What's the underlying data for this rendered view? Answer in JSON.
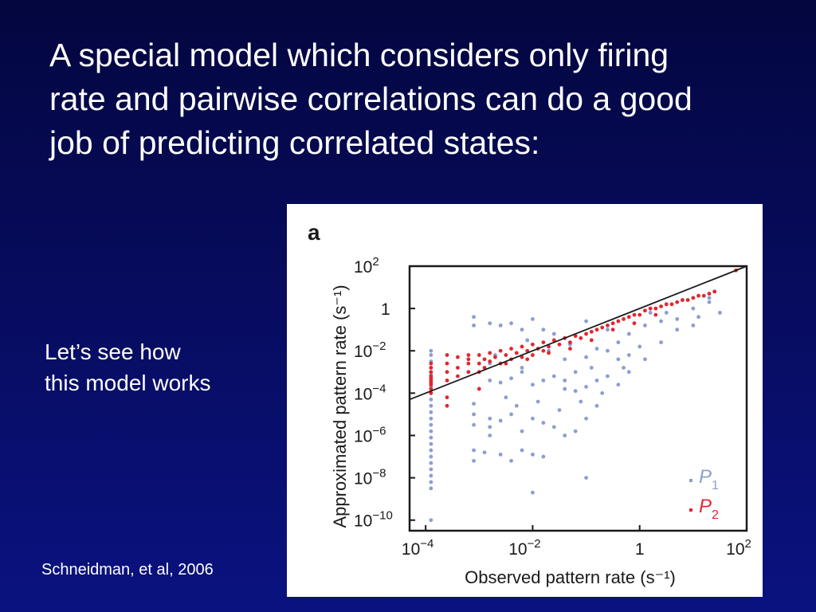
{
  "slide": {
    "title_lines": [
      "A special model which considers only firing",
      "rate and pairwise correlations can do a good",
      "job of predicting correlated states:"
    ],
    "side_lines": [
      "Let’s see how",
      "this model works"
    ],
    "citation": "Schneidman, et al, 2006"
  },
  "colors": {
    "p1": "#8b9ed1",
    "p2": "#e3262e",
    "line": "#1a1a1a"
  },
  "chart_data": {
    "type": "scatter",
    "panel_label": "a",
    "xlabel": "Observed pattern rate (s⁻¹)",
    "ylabel": "Approximated pattern rate (s⁻¹)",
    "scale": "log10",
    "xlim_log10": [
      -4.3,
      2.0
    ],
    "ylim_log10": [
      -10.5,
      2.0
    ],
    "x_ticks": [
      {
        "log": -4,
        "base": "10",
        "exp": "−4"
      },
      {
        "log": -2,
        "base": "10",
        "exp": "−2"
      },
      {
        "log": 0,
        "base": "1",
        "exp": ""
      },
      {
        "log": 2,
        "base": "10",
        "exp": "2"
      }
    ],
    "y_ticks": [
      {
        "log": 2,
        "base": "10",
        "exp": "2"
      },
      {
        "log": 0,
        "base": "1",
        "exp": ""
      },
      {
        "log": -2,
        "base": "10",
        "exp": "−2"
      },
      {
        "log": -4,
        "base": "10",
        "exp": "−4"
      },
      {
        "log": -6,
        "base": "10",
        "exp": "−6"
      },
      {
        "log": -8,
        "base": "10",
        "exp": "−8"
      },
      {
        "log": -10,
        "base": "10",
        "exp": "−10"
      }
    ],
    "reference_line": {
      "label": "y = x",
      "from_log10": [
        -4.3,
        -4.3
      ],
      "to_log10": [
        2.0,
        2.0
      ]
    },
    "legend": {
      "placement": "bottom-right",
      "entries": [
        {
          "name": "P",
          "sub": "1",
          "series": "p1"
        },
        {
          "name": "P",
          "sub": "2",
          "series": "p2"
        }
      ]
    },
    "series": [
      {
        "name": "P1",
        "points_log10": [
          [
            -3.9,
            -2.0
          ],
          [
            -3.9,
            -2.2
          ],
          [
            -3.9,
            -2.5
          ],
          [
            -3.9,
            -2.8
          ],
          [
            -3.9,
            -3.1
          ],
          [
            -3.9,
            -3.4
          ],
          [
            -3.9,
            -3.7
          ],
          [
            -3.9,
            -4.0
          ],
          [
            -3.9,
            -4.3
          ],
          [
            -3.9,
            -4.6
          ],
          [
            -3.9,
            -4.9
          ],
          [
            -3.9,
            -5.2
          ],
          [
            -3.9,
            -5.5
          ],
          [
            -3.9,
            -5.8
          ],
          [
            -3.9,
            -6.1
          ],
          [
            -3.9,
            -6.4
          ],
          [
            -3.9,
            -6.7
          ],
          [
            -3.9,
            -7.0
          ],
          [
            -3.9,
            -7.3
          ],
          [
            -3.9,
            -7.6
          ],
          [
            -3.9,
            -7.9
          ],
          [
            -3.9,
            -8.2
          ],
          [
            -3.9,
            -8.5
          ],
          [
            -3.9,
            -10.0
          ],
          [
            -3.1,
            -0.4
          ],
          [
            -3.1,
            -0.8
          ],
          [
            -3.1,
            -4.5
          ],
          [
            -3.1,
            -5.0
          ],
          [
            -3.1,
            -5.5
          ],
          [
            -3.1,
            -6.7
          ],
          [
            -3.1,
            -7.2
          ],
          [
            -2.8,
            -0.7
          ],
          [
            -2.8,
            -2.6
          ],
          [
            -2.8,
            -3.4
          ],
          [
            -2.8,
            -5.2
          ],
          [
            -2.8,
            -5.6
          ],
          [
            -2.8,
            -6.0
          ],
          [
            -2.6,
            -0.8
          ],
          [
            -2.6,
            -3.5
          ],
          [
            -2.6,
            -5.3
          ],
          [
            -2.6,
            -6.9
          ],
          [
            -2.4,
            -0.7
          ],
          [
            -2.4,
            -3.3
          ],
          [
            -2.4,
            -5.0
          ],
          [
            -2.4,
            -7.2
          ],
          [
            -2.2,
            -1.0
          ],
          [
            -2.2,
            -2.8
          ],
          [
            -2.2,
            -3.0
          ],
          [
            -2.2,
            -5.8
          ],
          [
            -2.2,
            -6.7
          ],
          [
            -2.0,
            -0.5
          ],
          [
            -2.0,
            -3.6
          ],
          [
            -2.0,
            -5.2
          ],
          [
            -2.0,
            -6.9
          ],
          [
            -2.0,
            -8.7
          ],
          [
            -1.8,
            -1.0
          ],
          [
            -1.8,
            -3.4
          ],
          [
            -1.8,
            -5.4
          ],
          [
            -1.8,
            -7.0
          ],
          [
            -1.6,
            -1.2
          ],
          [
            -1.6,
            -3.2
          ],
          [
            -1.6,
            -5.6
          ],
          [
            -1.4,
            -2.4
          ],
          [
            -1.4,
            -3.4
          ],
          [
            -1.4,
            -3.8
          ],
          [
            -1.4,
            -6.0
          ],
          [
            -1.2,
            -3.0
          ],
          [
            -1.2,
            -3.9
          ],
          [
            -1.2,
            -5.8
          ],
          [
            -1.0,
            -0.6
          ],
          [
            -1.0,
            -2.3
          ],
          [
            -1.0,
            -3.7
          ],
          [
            -1.0,
            -5.2
          ],
          [
            -1.0,
            -8.0
          ],
          [
            -0.8,
            -1.9
          ],
          [
            -0.8,
            -3.4
          ],
          [
            -0.8,
            -4.6
          ],
          [
            -0.6,
            -1.0
          ],
          [
            -0.6,
            -2.0
          ],
          [
            -0.6,
            -3.2
          ],
          [
            -0.4,
            -1.6
          ],
          [
            -0.4,
            -2.4
          ],
          [
            -0.4,
            -3.6
          ],
          [
            -0.2,
            -1.2
          ],
          [
            -0.2,
            -2.2
          ],
          [
            -0.2,
            -3.0
          ],
          [
            0.1,
            -0.8
          ],
          [
            0.1,
            -2.4
          ],
          [
            0.4,
            -0.6
          ],
          [
            0.4,
            -1.6
          ],
          [
            0.7,
            -0.5
          ],
          [
            0.7,
            -1.0
          ],
          [
            1.0,
            0.0
          ],
          [
            1.0,
            -0.8
          ],
          [
            1.3,
            0.5
          ],
          [
            1.3,
            0.3
          ],
          [
            -2.9,
            -6.8
          ],
          [
            -3.0,
            -3.8
          ],
          [
            -2.5,
            -4.2
          ],
          [
            -2.3,
            -4.6
          ],
          [
            -1.9,
            -4.4
          ],
          [
            -1.5,
            -4.8
          ],
          [
            -1.1,
            -4.4
          ],
          [
            -0.9,
            -2.8
          ],
          [
            -0.7,
            -4.0
          ],
          [
            -0.3,
            -2.8
          ],
          [
            0.0,
            -1.8
          ],
          [
            0.2,
            -0.2
          ],
          [
            0.5,
            -0.2
          ],
          [
            0.8,
            0.4
          ],
          [
            1.1,
            -0.4
          ],
          [
            1.5,
            -0.2
          ],
          [
            -2.7,
            -2.2
          ],
          [
            -2.1,
            -1.5
          ],
          [
            -1.7,
            -2.0
          ],
          [
            -1.3,
            -1.7
          ]
        ]
      },
      {
        "name": "P2",
        "points_log10": [
          [
            -3.9,
            -2.6
          ],
          [
            -3.9,
            -2.8
          ],
          [
            -3.9,
            -3.0
          ],
          [
            -3.9,
            -3.2
          ],
          [
            -3.9,
            -3.4
          ],
          [
            -3.9,
            -3.6
          ],
          [
            -3.9,
            -3.8
          ],
          [
            -3.9,
            -4.0
          ],
          [
            -3.9,
            -3.3
          ],
          [
            -3.9,
            -3.5
          ],
          [
            -3.6,
            -2.2
          ],
          [
            -3.6,
            -2.6
          ],
          [
            -3.6,
            -3.0
          ],
          [
            -3.6,
            -3.4
          ],
          [
            -3.6,
            -4.2
          ],
          [
            -3.6,
            -4.6
          ],
          [
            -3.4,
            -2.3
          ],
          [
            -3.4,
            -2.8
          ],
          [
            -3.4,
            -3.2
          ],
          [
            -3.2,
            -2.2
          ],
          [
            -3.2,
            -2.6
          ],
          [
            -3.2,
            -3.0
          ],
          [
            -3.2,
            -2.4
          ],
          [
            -3.0,
            -2.2
          ],
          [
            -3.0,
            -2.6
          ],
          [
            -3.0,
            -3.0
          ],
          [
            -3.0,
            -3.8
          ],
          [
            -2.9,
            -2.4
          ],
          [
            -2.9,
            -2.8
          ],
          [
            -2.8,
            -2.1
          ],
          [
            -2.8,
            -2.5
          ],
          [
            -2.7,
            -2.3
          ],
          [
            -2.6,
            -2.0
          ],
          [
            -2.6,
            -2.6
          ],
          [
            -2.5,
            -2.2
          ],
          [
            -2.4,
            -1.9
          ],
          [
            -2.4,
            -2.4
          ],
          [
            -2.3,
            -2.1
          ],
          [
            -2.2,
            -1.8
          ],
          [
            -2.2,
            -2.3
          ],
          [
            -2.1,
            -2.0
          ],
          [
            -2.0,
            -1.7
          ],
          [
            -2.0,
            -2.2
          ],
          [
            -1.9,
            -1.9
          ],
          [
            -1.8,
            -1.6
          ],
          [
            -1.8,
            -2.0
          ],
          [
            -1.7,
            -1.8
          ],
          [
            -1.6,
            -1.5
          ],
          [
            -1.5,
            -1.7
          ],
          [
            -1.4,
            -1.4
          ],
          [
            -1.3,
            -1.6
          ],
          [
            -1.2,
            -1.3
          ],
          [
            -1.1,
            -1.4
          ],
          [
            -1.0,
            -1.2
          ],
          [
            -0.9,
            -1.1
          ],
          [
            -0.8,
            -1.0
          ],
          [
            -0.7,
            -0.9
          ],
          [
            -0.6,
            -0.8
          ],
          [
            -0.5,
            -0.7
          ],
          [
            -0.4,
            -0.6
          ],
          [
            -0.3,
            -0.5
          ],
          [
            -0.2,
            -0.4
          ],
          [
            -0.1,
            -0.3
          ],
          [
            0.0,
            -0.3
          ],
          [
            0.1,
            -0.1
          ],
          [
            0.2,
            0.0
          ],
          [
            0.3,
            0.0
          ],
          [
            0.4,
            0.1
          ],
          [
            0.5,
            0.2
          ],
          [
            0.6,
            0.2
          ],
          [
            0.7,
            0.3
          ],
          [
            0.8,
            0.4
          ],
          [
            0.9,
            0.4
          ],
          [
            1.0,
            0.5
          ],
          [
            1.1,
            0.6
          ],
          [
            1.2,
            0.6
          ],
          [
            1.3,
            0.7
          ],
          [
            1.4,
            0.8
          ],
          [
            -2.5,
            -2.6
          ],
          [
            -2.1,
            -2.4
          ],
          [
            -1.7,
            -2.1
          ],
          [
            -1.3,
            -1.9
          ],
          [
            -0.9,
            -1.5
          ],
          [
            -0.5,
            -1.0
          ],
          [
            -0.1,
            -0.7
          ],
          [
            0.3,
            -0.3
          ],
          [
            1.8,
            1.8
          ]
        ]
      }
    ]
  }
}
